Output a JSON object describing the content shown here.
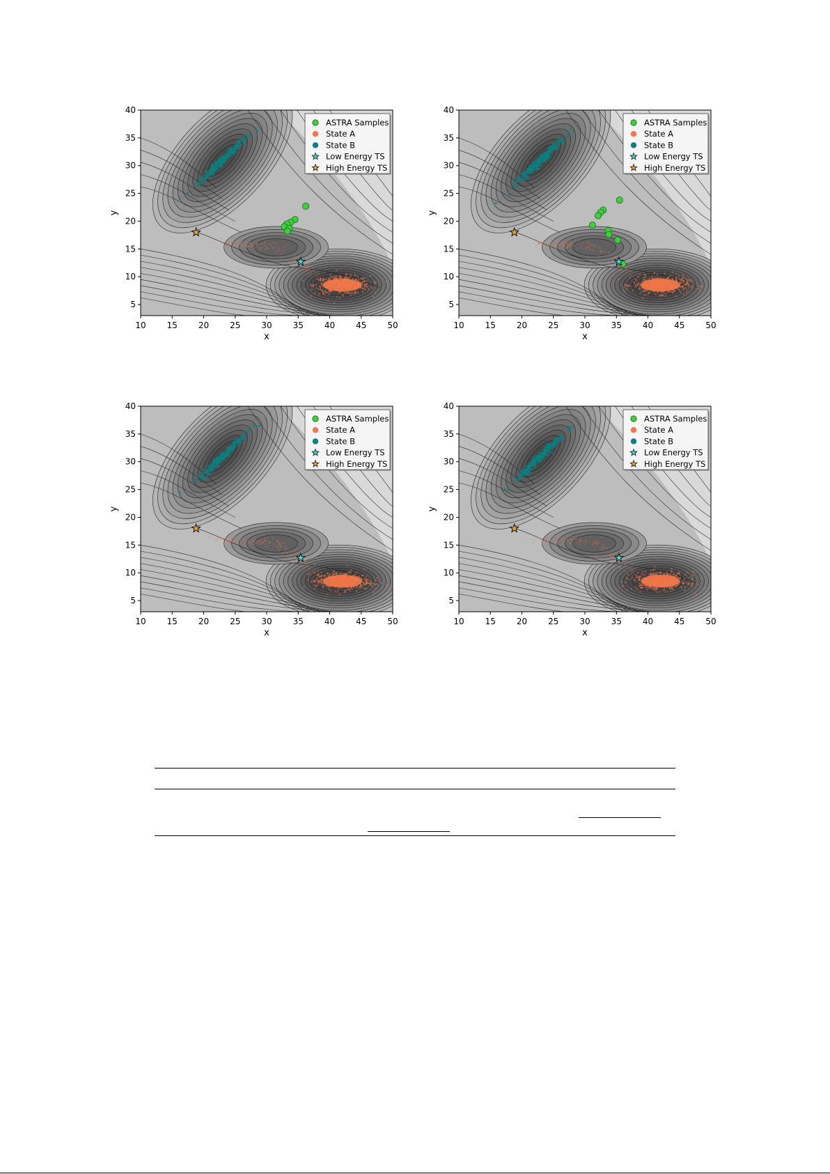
{
  "chart_data": [
    {
      "type": "scatter",
      "title": "",
      "xlabel": "x",
      "ylabel": "y",
      "xlim": [
        10,
        50
      ],
      "ylim": [
        3,
        40
      ],
      "xticks": [
        10,
        15,
        20,
        25,
        30,
        35,
        40,
        45,
        50
      ],
      "yticks": [
        5,
        10,
        15,
        20,
        25,
        30,
        35,
        40
      ],
      "background": "contour energy landscape (grayscale)",
      "legend_position": "top-right",
      "series": [
        {
          "name": "ASTRA Samples",
          "color": "#3ecf3e",
          "marker": "circle",
          "points": [
            [
              36.2,
              22.7
            ],
            [
              34.5,
              20.3
            ],
            [
              33.8,
              19.8
            ],
            [
              33.2,
              19.5
            ],
            [
              32.8,
              19.0
            ],
            [
              33.6,
              18.7
            ],
            [
              33.3,
              18.2
            ]
          ]
        },
        {
          "name": "State A",
          "color": "#f4784a",
          "marker": "circle",
          "points": []
        },
        {
          "name": "State B",
          "color": "#0a8080",
          "marker": "circle",
          "points": []
        },
        {
          "name": "Low Energy TS",
          "color": "#40d8d0",
          "marker": "star",
          "points": [
            [
              35.4,
              12.7
            ]
          ]
        },
        {
          "name": "High Energy TS",
          "color": "#f0a030",
          "marker": "star",
          "points": [
            [
              18.8,
              18.0
            ]
          ]
        }
      ]
    },
    {
      "type": "scatter",
      "title": "",
      "xlabel": "x",
      "ylabel": "y",
      "xlim": [
        10,
        50
      ],
      "ylim": [
        3,
        40
      ],
      "xticks": [
        10,
        15,
        20,
        25,
        30,
        35,
        40,
        45,
        50
      ],
      "yticks": [
        5,
        10,
        15,
        20,
        25,
        30,
        35,
        40
      ],
      "background": "contour energy landscape (grayscale)",
      "legend_position": "top-right",
      "series": [
        {
          "name": "ASTRA Samples",
          "color": "#3ecf3e",
          "marker": "circle",
          "points": [
            [
              35.5,
              23.8
            ],
            [
              32.9,
              22.0
            ],
            [
              32.5,
              21.6
            ],
            [
              32.1,
              21.0
            ],
            [
              31.2,
              19.3
            ],
            [
              33.7,
              18.3
            ],
            [
              33.8,
              17.6
            ],
            [
              35.2,
              16.6
            ],
            [
              36.0,
              12.3
            ]
          ]
        },
        {
          "name": "State A",
          "color": "#f4784a",
          "marker": "circle",
          "points": []
        },
        {
          "name": "State B",
          "color": "#0a8080",
          "marker": "circle",
          "points": []
        },
        {
          "name": "Low Energy TS",
          "color": "#40d8d0",
          "marker": "star",
          "points": [
            [
              35.4,
              12.7
            ]
          ]
        },
        {
          "name": "High Energy TS",
          "color": "#f0a030",
          "marker": "star",
          "points": [
            [
              18.8,
              18.0
            ]
          ]
        }
      ]
    },
    {
      "type": "scatter",
      "title": "",
      "xlabel": "x",
      "ylabel": "y",
      "xlim": [
        10,
        50
      ],
      "ylim": [
        3,
        40
      ],
      "xticks": [
        10,
        15,
        20,
        25,
        30,
        35,
        40,
        45,
        50
      ],
      "yticks": [
        5,
        10,
        15,
        20,
        25,
        30,
        35,
        40
      ],
      "background": "contour energy landscape (grayscale)",
      "legend_position": "top-right",
      "series": [
        {
          "name": "ASTRA Samples",
          "color": "#3ecf3e",
          "marker": "circle",
          "points": []
        },
        {
          "name": "State A",
          "color": "#f4784a",
          "marker": "circle",
          "points": []
        },
        {
          "name": "State B",
          "color": "#0a8080",
          "marker": "circle",
          "points": []
        },
        {
          "name": "Low Energy TS",
          "color": "#40d8d0",
          "marker": "star",
          "points": [
            [
              35.4,
              12.7
            ]
          ]
        },
        {
          "name": "High Energy TS",
          "color": "#f0a030",
          "marker": "star",
          "points": [
            [
              18.8,
              18.0
            ]
          ]
        }
      ]
    },
    {
      "type": "scatter",
      "title": "",
      "xlabel": "x",
      "ylabel": "y",
      "xlim": [
        10,
        50
      ],
      "ylim": [
        3,
        40
      ],
      "xticks": [
        10,
        15,
        20,
        25,
        30,
        35,
        40,
        45,
        50
      ],
      "yticks": [
        5,
        10,
        15,
        20,
        25,
        30,
        35,
        40
      ],
      "background": "contour energy landscape (grayscale)",
      "legend_position": "top-right",
      "series": [
        {
          "name": "ASTRA Samples",
          "color": "#3ecf3e",
          "marker": "circle",
          "points": []
        },
        {
          "name": "State A",
          "color": "#f4784a",
          "marker": "circle",
          "points": []
        },
        {
          "name": "State B",
          "color": "#0a8080",
          "marker": "circle",
          "points": []
        },
        {
          "name": "Low Energy TS",
          "color": "#40d8d0",
          "marker": "star",
          "points": [
            [
              35.4,
              12.7
            ]
          ]
        },
        {
          "name": "High Energy TS",
          "color": "#f0a030",
          "marker": "star",
          "points": [
            [
              18.8,
              18.0
            ]
          ]
        }
      ]
    }
  ]
}
